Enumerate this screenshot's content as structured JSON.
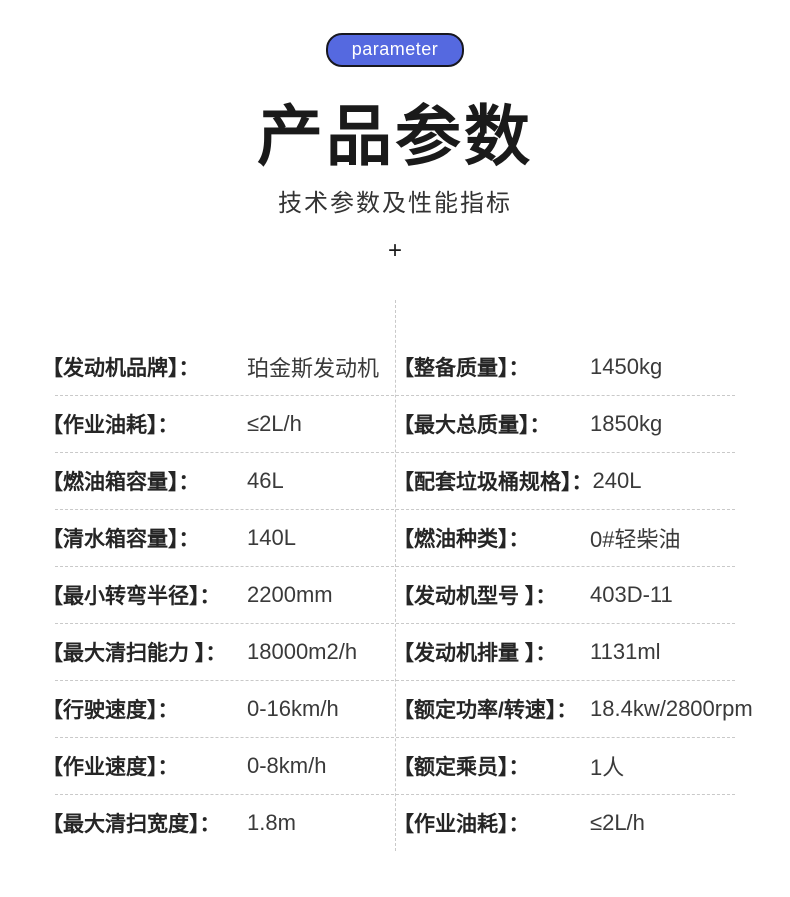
{
  "badge": {
    "label": "parameter"
  },
  "header": {
    "title": "产品参数",
    "subtitle": "技术参数及性能指标",
    "plus": "+"
  },
  "colors": {
    "badge_bg": "#5569E0",
    "badge_border": "#17171f",
    "divider": "#c9c9c9"
  },
  "table": {
    "rows": [
      {
        "left": {
          "label": "【发动机品牌】：",
          "value": "珀金斯发动机"
        },
        "right": {
          "label": "【整备质量】：",
          "value": "1450kg"
        }
      },
      {
        "left": {
          "label": "【作业油耗】：",
          "value": "≤2L/h"
        },
        "right": {
          "label": "【最大总质量】：",
          "value": "1850kg"
        }
      },
      {
        "left": {
          "label": "【燃油箱容量】：",
          "value": "46L"
        },
        "right": {
          "label": "【配套垃圾桶规格】：",
          "value": "240L"
        }
      },
      {
        "left": {
          "label": "【清水箱容量】：",
          "value": "140L"
        },
        "right": {
          "label": "【燃油种类】：",
          "value": "0#轻柴油"
        }
      },
      {
        "left": {
          "label": "【最小转弯半径】：",
          "value": "2200mm"
        },
        "right": {
          "label": "【发动机型号 】：",
          "value": "403D-11"
        }
      },
      {
        "left": {
          "label": "【最大清扫能力 】：",
          "value": "18000m2/h"
        },
        "right": {
          "label": "【发动机排量 】：",
          "value": "1131ml"
        }
      },
      {
        "left": {
          "label": "【行驶速度】：",
          "value": "0-16km/h"
        },
        "right": {
          "label": "【额定功率/转速】：",
          "value": "18.4kw/2800rpm"
        }
      },
      {
        "left": {
          "label": "【作业速度】：",
          "value": "0-8km/h"
        },
        "right": {
          "label": "【额定乘员】：",
          "value": "1人"
        }
      },
      {
        "left": {
          "label": "【最大清扫宽度】：",
          "value": "1.8m"
        },
        "right": {
          "label": "【作业油耗】：",
          "value": "≤2L/h"
        }
      }
    ]
  }
}
